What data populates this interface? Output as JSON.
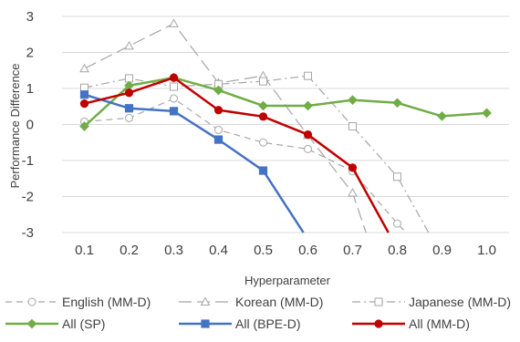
{
  "chart_data": {
    "type": "line",
    "title": "",
    "xlabel": "Hyperparameter",
    "ylabel": "Performance Difference",
    "x": [
      0.1,
      0.2,
      0.3,
      0.4,
      0.5,
      0.6,
      0.7,
      0.8,
      0.9,
      1.0
    ],
    "x_tick_labels": [
      "0.1",
      "0.2",
      "0.3",
      "0.4",
      "0.5",
      "0.6",
      "0.7",
      "0.8",
      "0.9",
      "1.0"
    ],
    "ylim": [
      -3,
      3
    ],
    "y_ticks": [
      3,
      2,
      1,
      0,
      -1,
      -2,
      -3
    ],
    "y_tick_labels": [
      "3",
      "2",
      "1",
      "0",
      "-1",
      "-2",
      "-3"
    ],
    "grid": "horizontal",
    "legend_position": "bottom",
    "series": [
      {
        "name": "English (MM-D)",
        "color": "#a6a6a6",
        "dash": "dashed",
        "marker": "open-circle",
        "points": [
          [
            0.1,
            0.08
          ],
          [
            0.2,
            0.18
          ],
          [
            0.3,
            0.72
          ],
          [
            0.4,
            -0.15
          ],
          [
            0.5,
            -0.5
          ],
          [
            0.6,
            -0.68
          ],
          [
            0.7,
            -1.3
          ],
          [
            0.8,
            -2.75
          ],
          [
            0.82,
            -3.0
          ]
        ]
      },
      {
        "name": "Korean (MM-D)",
        "color": "#a6a6a6",
        "dash": "long-dash",
        "marker": "open-triangle",
        "points": [
          [
            0.1,
            1.55
          ],
          [
            0.2,
            2.18
          ],
          [
            0.3,
            2.8
          ],
          [
            0.4,
            1.15
          ],
          [
            0.5,
            1.35
          ],
          [
            0.6,
            -0.3
          ],
          [
            0.7,
            -1.9
          ],
          [
            0.73,
            -3.0
          ]
        ]
      },
      {
        "name": "Japanese (MM-D)",
        "color": "#a6a6a6",
        "dash": "dash-dot",
        "marker": "open-square",
        "points": [
          [
            0.1,
            1.02
          ],
          [
            0.2,
            1.28
          ],
          [
            0.3,
            1.05
          ],
          [
            0.4,
            1.12
          ],
          [
            0.5,
            1.2
          ],
          [
            0.6,
            1.35
          ],
          [
            0.7,
            -0.05
          ],
          [
            0.8,
            -1.45
          ],
          [
            0.87,
            -3.0
          ]
        ]
      },
      {
        "name": "All (SP)",
        "color": "#70ad47",
        "dash": "solid",
        "marker": "diamond",
        "points": [
          [
            0.1,
            -0.05
          ],
          [
            0.2,
            1.08
          ],
          [
            0.3,
            1.3
          ],
          [
            0.4,
            0.95
          ],
          [
            0.5,
            0.52
          ],
          [
            0.6,
            0.52
          ],
          [
            0.7,
            0.68
          ],
          [
            0.8,
            0.6
          ],
          [
            0.9,
            0.23
          ],
          [
            1.0,
            0.32
          ]
        ]
      },
      {
        "name": "All (BPE-D)",
        "color": "#4472c4",
        "dash": "solid",
        "marker": "square",
        "points": [
          [
            0.1,
            0.83
          ],
          [
            0.2,
            0.45
          ],
          [
            0.3,
            0.37
          ],
          [
            0.4,
            -0.42
          ],
          [
            0.5,
            -1.28
          ],
          [
            0.59,
            -3.0
          ]
        ]
      },
      {
        "name": "All (MM-D)",
        "color": "#c00000",
        "dash": "solid",
        "marker": "circle",
        "points": [
          [
            0.1,
            0.58
          ],
          [
            0.2,
            0.88
          ],
          [
            0.3,
            1.3
          ],
          [
            0.4,
            0.4
          ],
          [
            0.5,
            0.22
          ],
          [
            0.6,
            -0.28
          ],
          [
            0.7,
            -1.2
          ],
          [
            0.78,
            -3.0
          ]
        ]
      }
    ]
  }
}
